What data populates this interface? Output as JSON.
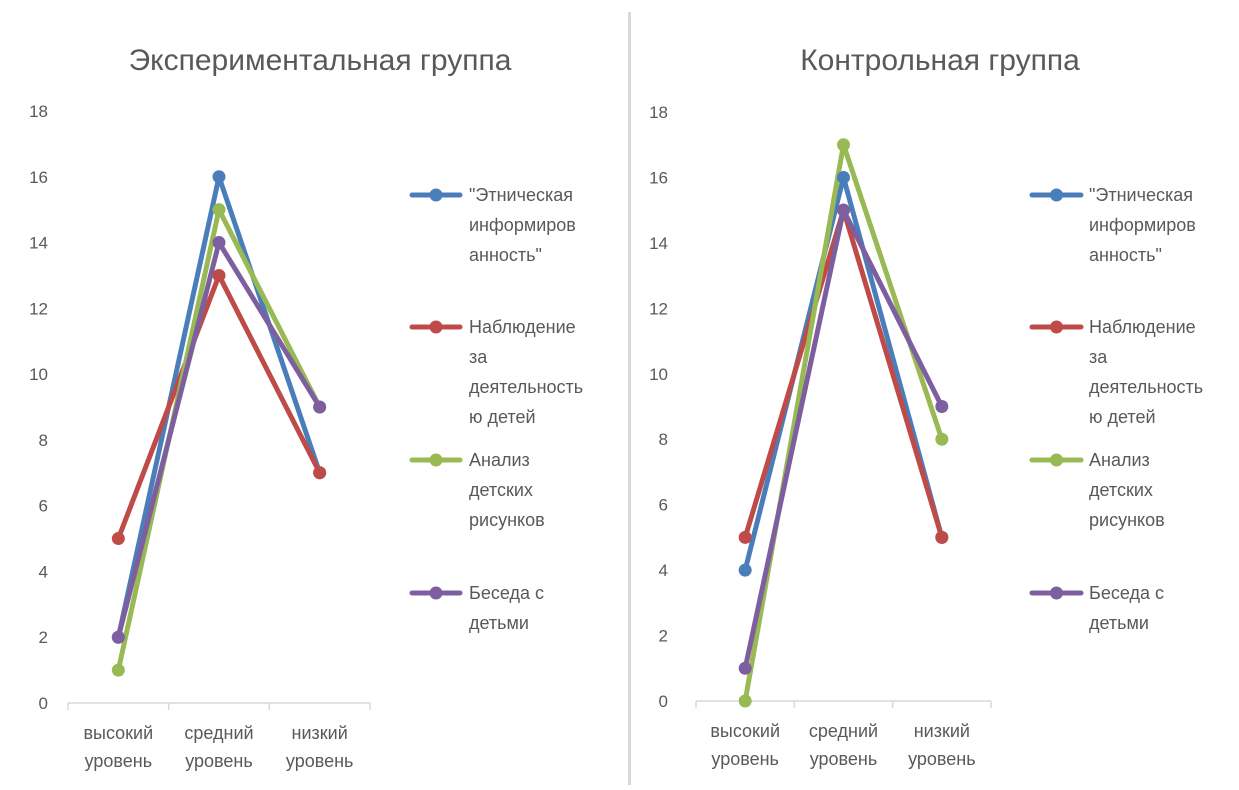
{
  "colors": {
    "series": [
      "#4a7ebb",
      "#be4b48",
      "#98b954",
      "#7d5fa0"
    ],
    "axis": "#d9d9d9",
    "text": "#595959"
  },
  "chart_data": [
    {
      "type": "line",
      "title": "Экспериментальная группа",
      "categories": [
        "высокий уровень",
        "средний уровень",
        "низкий уровень"
      ],
      "category_lines": [
        [
          "высокий",
          "уровень"
        ],
        [
          "средний",
          "уровень"
        ],
        [
          "низкий",
          "уровень"
        ]
      ],
      "ylim": [
        0,
        18
      ],
      "yticks": [
        0,
        2,
        4,
        6,
        8,
        10,
        12,
        14,
        16,
        18
      ],
      "grid": false,
      "legend_position": "right",
      "series": [
        {
          "name": "\"Этническая информированность\"",
          "legend_lines": [
            "\"Этническая",
            "информиров",
            "анность\""
          ],
          "values": [
            2,
            16,
            7
          ]
        },
        {
          "name": "Наблюдение за деятельностью детей",
          "legend_lines": [
            "Наблюдение",
            "за",
            "деятельность",
            "ю детей"
          ],
          "values": [
            5,
            13,
            7
          ]
        },
        {
          "name": "Анализ детских рисунков",
          "legend_lines": [
            "Анализ",
            "детских",
            "рисунков"
          ],
          "values": [
            1,
            15,
            9
          ]
        },
        {
          "name": "Беседа с детьми",
          "legend_lines": [
            "Беседа с",
            "детьми"
          ],
          "values": [
            2,
            14,
            9
          ]
        }
      ]
    },
    {
      "type": "line",
      "title": "Контрольная группа",
      "categories": [
        "высокий уровень",
        "средний уровень",
        "низкий уровень"
      ],
      "category_lines": [
        [
          "высокий",
          "уровень"
        ],
        [
          "средний",
          "уровень"
        ],
        [
          "низкий",
          "уровень"
        ]
      ],
      "ylim": [
        0,
        18
      ],
      "yticks": [
        0,
        2,
        4,
        6,
        8,
        10,
        12,
        14,
        16,
        18
      ],
      "grid": false,
      "legend_position": "right",
      "series": [
        {
          "name": "\"Этническая информированность\"",
          "legend_lines": [
            "\"Этническая",
            "информиров",
            "анность\""
          ],
          "values": [
            4,
            16,
            5
          ]
        },
        {
          "name": "Наблюдение за деятельностью детей",
          "legend_lines": [
            "Наблюдение",
            "за",
            "деятельность",
            "ю детей"
          ],
          "values": [
            5,
            15,
            5
          ]
        },
        {
          "name": "Анализ детских рисунков",
          "legend_lines": [
            "Анализ",
            "детских",
            "рисунков"
          ],
          "values": [
            0,
            17,
            8
          ]
        },
        {
          "name": "Беседа с детьми",
          "legend_lines": [
            "Беседа с",
            "детьми"
          ],
          "values": [
            1,
            15,
            9
          ]
        }
      ]
    }
  ]
}
